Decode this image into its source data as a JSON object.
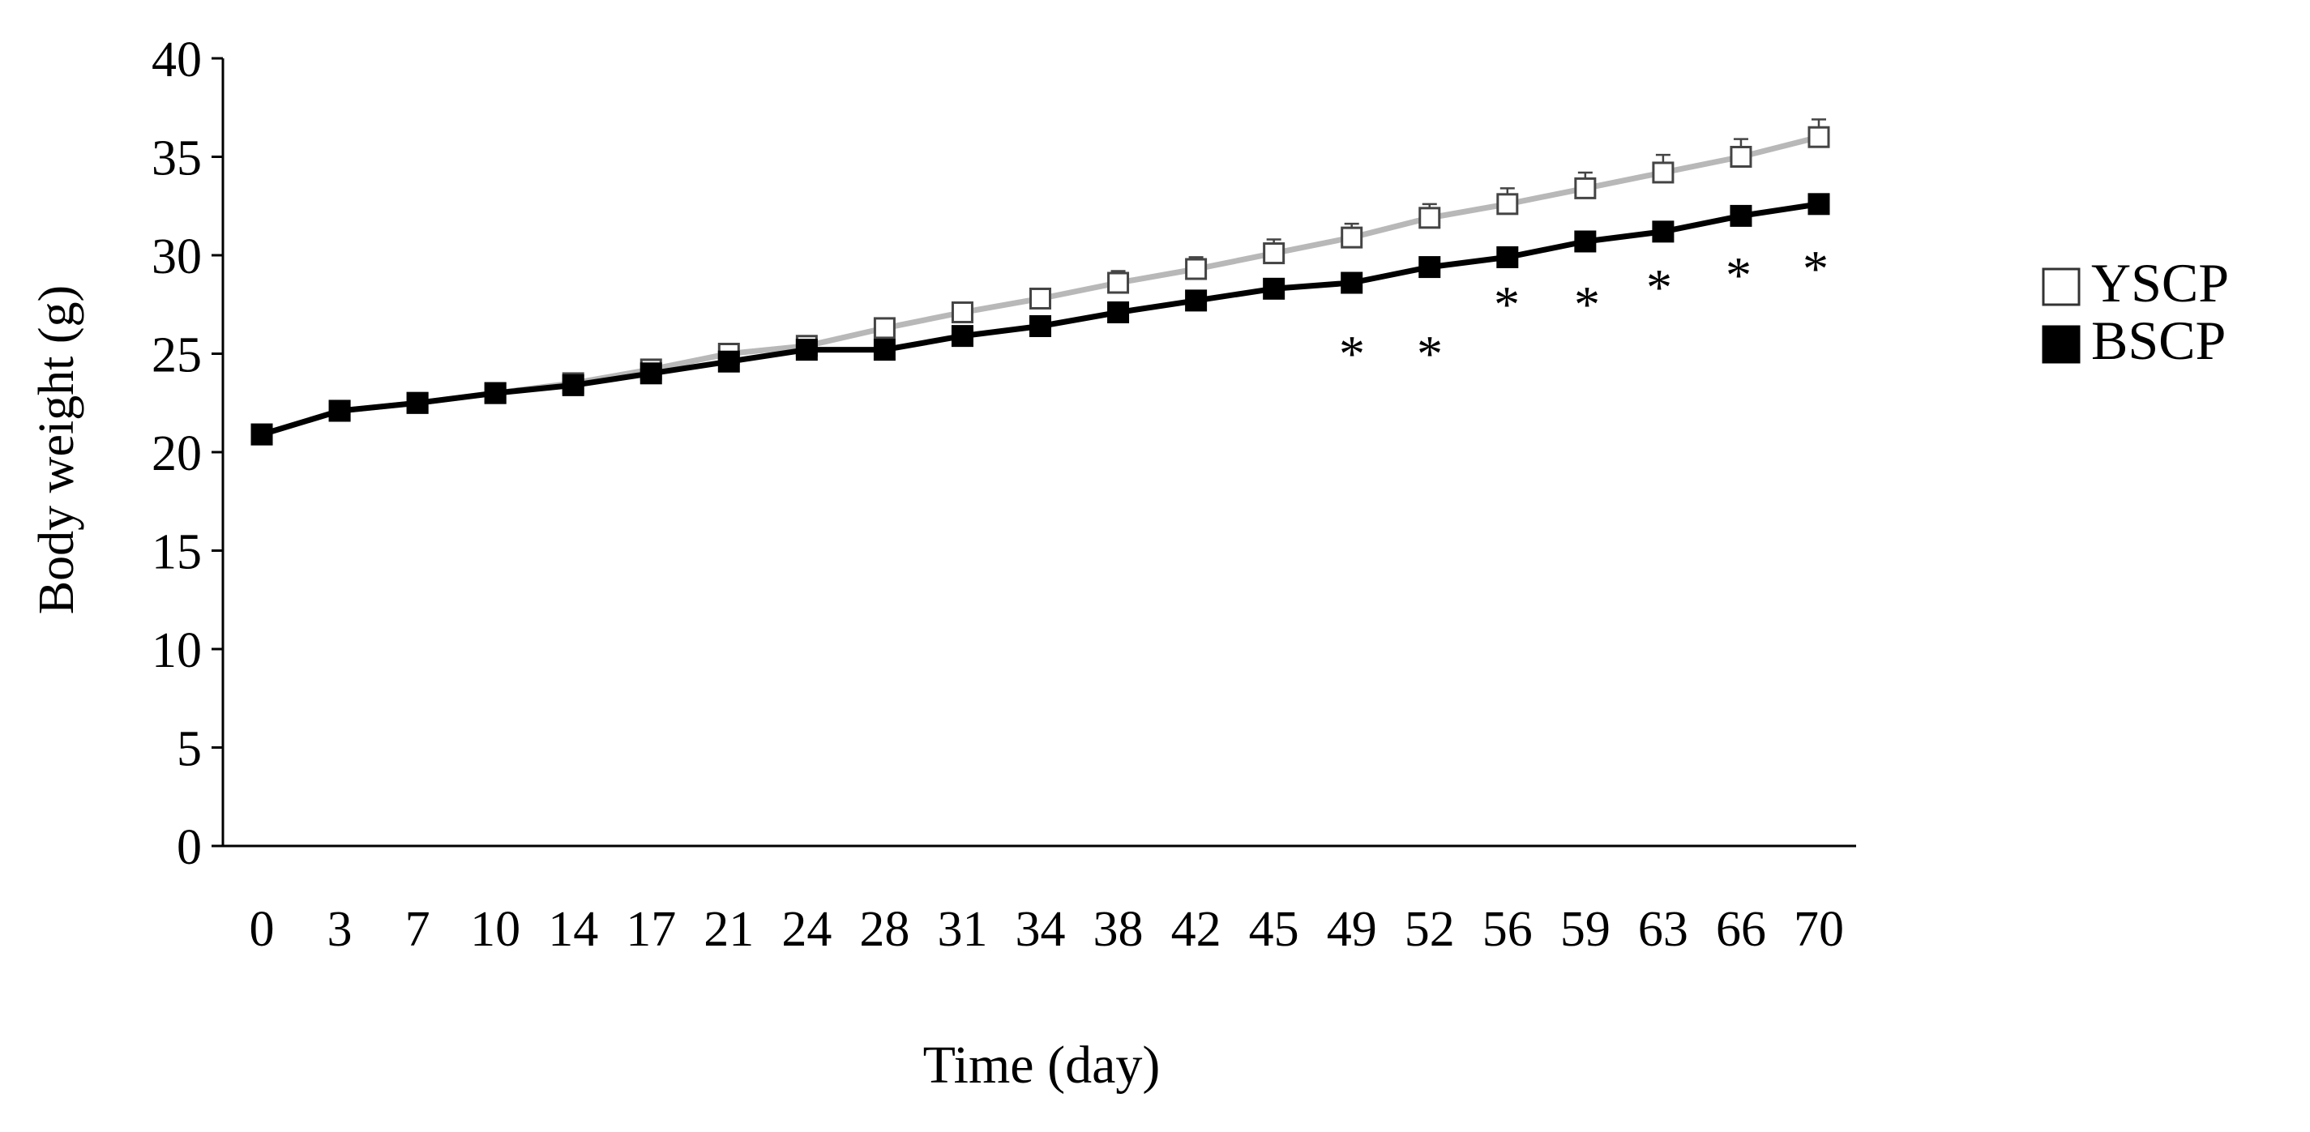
{
  "colors": {
    "yscp_line": "#b8b8b8",
    "bscp_line": "#000000",
    "axis": "#000000",
    "background": "#ffffff"
  },
  "chart_data": {
    "type": "line",
    "title": "",
    "xlabel": "Time (day)",
    "ylabel": "Body weight  (g)",
    "x": [
      "0",
      "3",
      "7",
      "10",
      "14",
      "17",
      "21",
      "24",
      "28",
      "31",
      "34",
      "38",
      "42",
      "45",
      "49",
      "52",
      "56",
      "59",
      "63",
      "66",
      "70"
    ],
    "ylim": [
      0,
      40
    ],
    "yticks": [
      "0",
      "5",
      "10",
      "15",
      "20",
      "25",
      "30",
      "35",
      "40"
    ],
    "grid": false,
    "legend_position": "right",
    "series": [
      {
        "name": "YSCP",
        "marker": "open-square",
        "values": [
          20.9,
          22.1,
          22.5,
          23.0,
          23.5,
          24.2,
          25.0,
          25.4,
          26.3,
          27.1,
          27.8,
          28.6,
          29.3,
          30.1,
          30.9,
          31.9,
          32.6,
          33.4,
          34.2,
          35.0,
          36.0
        ],
        "error": [
          0.3,
          0.3,
          0.3,
          0.3,
          0.3,
          0.3,
          0.4,
          0.4,
          0.5,
          0.5,
          0.5,
          0.6,
          0.6,
          0.7,
          0.7,
          0.7,
          0.8,
          0.8,
          0.9,
          0.9,
          0.9
        ]
      },
      {
        "name": "BSCP",
        "marker": "filled-square",
        "values": [
          20.9,
          22.1,
          22.5,
          23.0,
          23.4,
          24.0,
          24.6,
          25.2,
          25.2,
          25.9,
          26.4,
          27.1,
          27.7,
          28.3,
          28.6,
          29.4,
          29.9,
          30.7,
          31.2,
          32.0,
          32.6
        ],
        "error": [
          0.2,
          0.2,
          0.2,
          0.2,
          0.2,
          0.2,
          0.2,
          0.2,
          0.2,
          0.2,
          0.2,
          0.2,
          0.2,
          0.2,
          0.2,
          0.2,
          0.2,
          0.2,
          0.2,
          0.2,
          0.2
        ]
      }
    ],
    "annotations": {
      "significance_mark": "*",
      "significant_x": [
        "49",
        "52",
        "56",
        "59",
        "63",
        "66",
        "70"
      ]
    }
  }
}
